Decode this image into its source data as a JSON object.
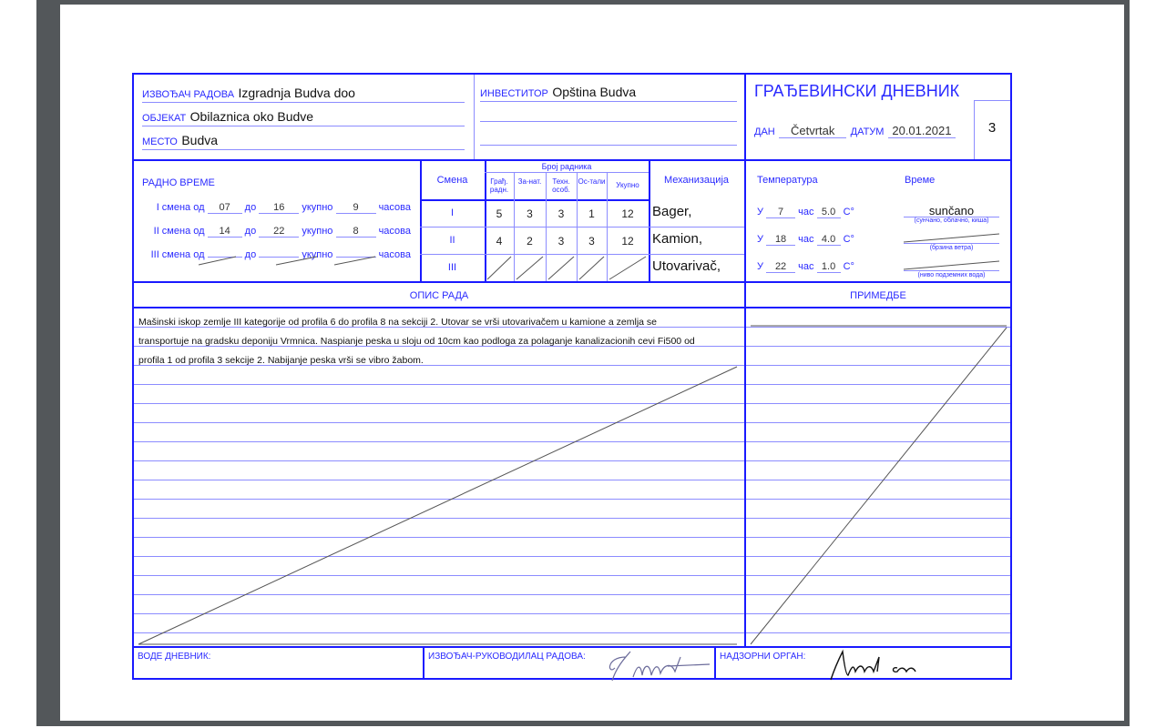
{
  "header": {
    "contractor_label": "ИЗВОЂАЧ РАДОВА",
    "contractor_value": "Izgradnja Budva doo",
    "object_label": "ОБЈЕКАТ",
    "object_value": "Obilaznica oko Budve",
    "place_label": "МЕСТО",
    "place_value": "Budva",
    "investor_label": "ИНВЕСТИТОР",
    "investor_value": "Opština Budva",
    "title": "ГРАЂЕВИНСКИ ДНЕВНИК",
    "day_label": "ДАН",
    "day_value": "Četvrtak",
    "date_label": "ДАТУМ",
    "date_value": "20.01.2021",
    "page_number": "3"
  },
  "working_time": {
    "title": "РАДНО ВРЕМЕ",
    "from_label": "од",
    "to_label": "до",
    "total_label": "укупно",
    "hours_label": "часова",
    "shifts": [
      {
        "label": "I смена",
        "from": "07",
        "to": "16",
        "total": "9"
      },
      {
        "label": "II смена",
        "from": "14",
        "to": "22",
        "total": "8"
      },
      {
        "label": "III смена",
        "from": "",
        "to": "",
        "total": ""
      }
    ]
  },
  "workers": {
    "shift_header": "Смена",
    "group_header": "Број радника",
    "columns": [
      "Грађ. радн.",
      "За-нат.",
      "Техн. особ.",
      "Ос-тали",
      "Укупно"
    ],
    "mechanization_header": "Механизација",
    "rows": [
      {
        "shift": "I",
        "values": [
          "5",
          "3",
          "3",
          "1",
          "12"
        ],
        "mechanization": "Bager,"
      },
      {
        "shift": "II",
        "values": [
          "4",
          "2",
          "3",
          "3",
          "12"
        ],
        "mechanization": "Kamion,"
      },
      {
        "shift": "III",
        "values": [
          "",
          "",
          "",
          "",
          ""
        ],
        "mechanization": "Utovarivač,"
      }
    ]
  },
  "weather": {
    "temperature_label": "Температура",
    "weather_label": "Време",
    "at_label": "У",
    "hour_label": "час",
    "unit": "C°",
    "readings": [
      {
        "hour": "7",
        "temp": "5.0"
      },
      {
        "hour": "18",
        "temp": "4.0"
      },
      {
        "hour": "22",
        "temp": "1.0"
      }
    ],
    "conditions_value": "sunčano",
    "conditions_hint": "(сунчано, облачно, киша)",
    "wind_hint": "(брзина ветра)",
    "groundwater_hint": "(ниво подземних вода)"
  },
  "description": {
    "title": "ОПИС РАДА",
    "lines": [
      "Mašinski iskop zemlje III kategorije od profila 6 do profila 8 na sekciji 2. Utovar se vrši utovarivačem u kamione a zemlja se",
      "transportuje na gradsku deponiju Vrmnica. Naspianje peska u sloju od 10cm kao podloga za polaganje kanalizacionih cevi Fi500 od",
      "profila 1 od profila 3 sekcije 2. Nabijanje peska vrši se vibro žabom."
    ]
  },
  "remarks": {
    "title": "ПРИМЕДБЕ"
  },
  "footer": {
    "keeper_label": "ВОДЕ ДНЕВНИК:",
    "manager_label": "ИЗВОЂАЧ-РУКОВОДИЛАЦ РАДОВА:",
    "supervisor_label": "НАДЗОРНИ ОРГАН:"
  },
  "colors": {
    "form_blue": "#1a1aff",
    "viewer_gray": "#53575a"
  }
}
